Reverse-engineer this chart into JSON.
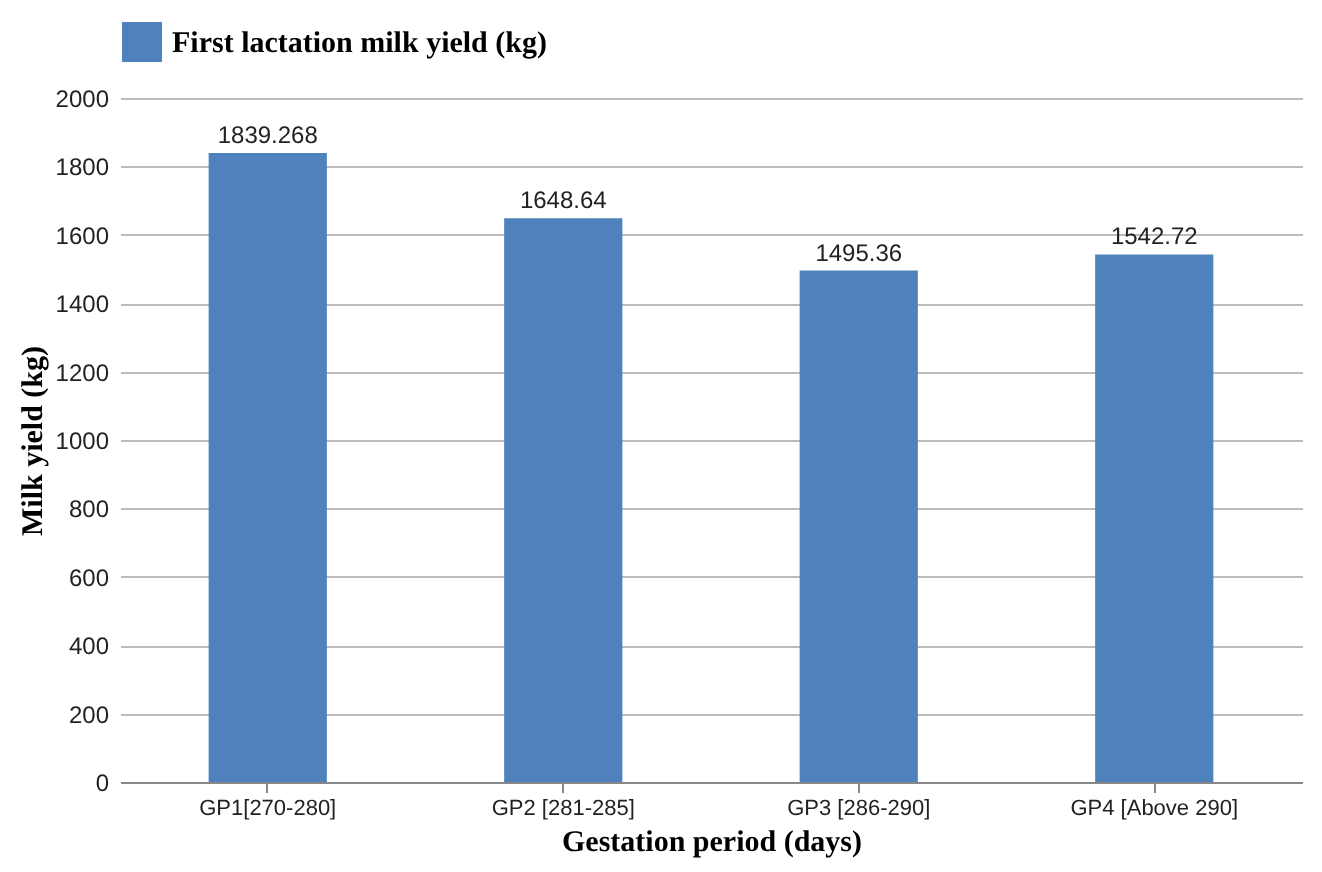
{
  "chart_data": {
    "type": "bar",
    "xlabel": "Gestation period (days)",
    "ylabel": "Milk yield (kg)",
    "categories": [
      "GP1[270-280]",
      "GP2 [281-285]",
      "GP3 [286-290]",
      "GP4 [Above 290]"
    ],
    "series": [
      {
        "name": "First lactation milk yield (kg)",
        "color": "#4f81bd",
        "values": [
          1839.268,
          1648.64,
          1495.36,
          1542.72
        ]
      }
    ],
    "ylim": [
      0,
      2000
    ],
    "yticks": [
      0,
      200,
      400,
      600,
      800,
      1000,
      1200,
      1400,
      1600,
      1800,
      2000
    ],
    "grid": "y",
    "legend": "top",
    "data_labels": true
  }
}
